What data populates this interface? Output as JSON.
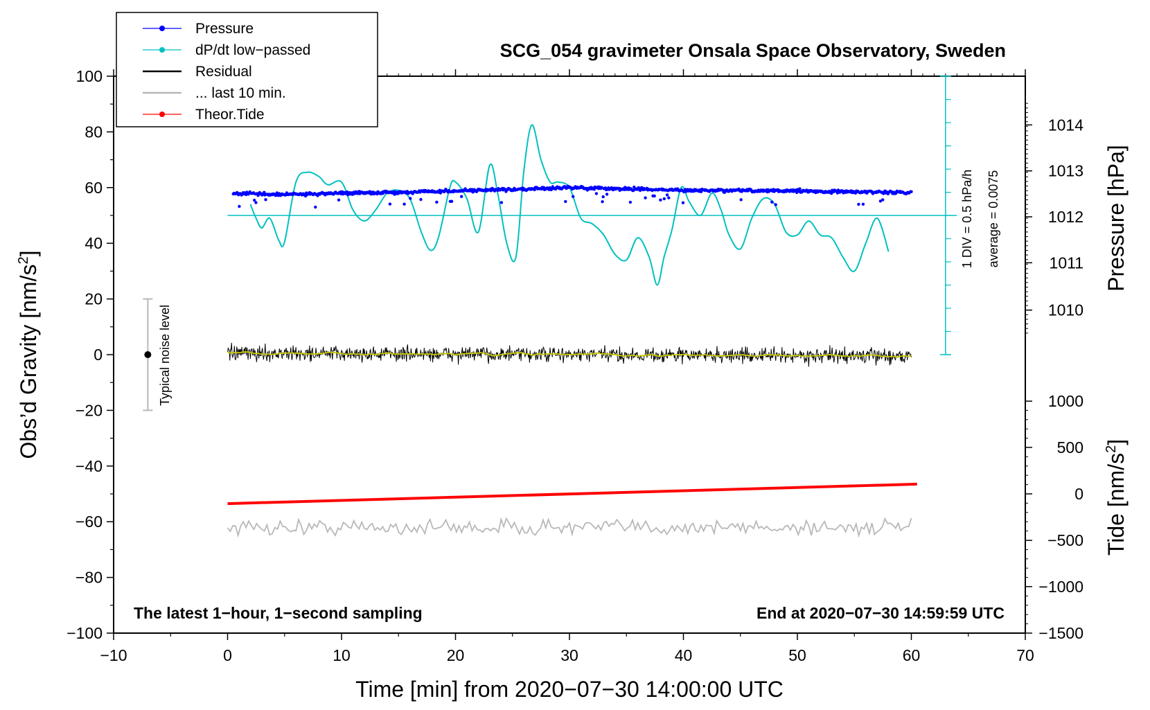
{
  "chart_data": {
    "type": "line",
    "title": "SCG_054 gravimeter Onsala Space Observatory, Sweden",
    "xlabel": "Time [min] from 2020−07−30 14:00:00 UTC",
    "ylabel": "Obs’d Gravity [nm/s",
    "ylabel_sup": "2",
    "ylabel_end": "]",
    "xlim": [
      -10,
      70
    ],
    "ylim": [
      -100,
      100
    ],
    "xticks": [
      "−10",
      "0",
      "10",
      "20",
      "30",
      "40",
      "50",
      "60",
      "70"
    ],
    "yticks": [
      "100",
      "80",
      "60",
      "40",
      "20",
      "0",
      "−20",
      "−40",
      "−60",
      "−80",
      "−100"
    ],
    "right_axes": {
      "pressure": {
        "label": "Pressure [hPa]",
        "ticks": [
          "1014",
          "1013",
          "1012",
          "1011",
          "1010"
        ],
        "tick_values": [
          1014,
          1013,
          1012,
          1011,
          1010
        ],
        "gravity_equivalent": [
          82.5,
          66,
          49.5,
          33,
          16
        ]
      },
      "tide": {
        "label": "Tide [nm/s",
        "label_sup": "2",
        "label_end": "]",
        "ticks": [
          "1000",
          "500",
          "0",
          "−500",
          "−1000",
          "−1500"
        ],
        "tick_values": [
          1000,
          500,
          0,
          -500,
          -1000,
          -1500
        ],
        "gravity_equivalent": [
          -16.7,
          -33.3,
          -50,
          -66.7,
          -83.3,
          -100
        ]
      }
    },
    "dpdt_scale": {
      "div_label": "1 DIV = 0.5 hPa/h",
      "average_label": "average = 0.0075",
      "baseline_gravity": 50
    },
    "noise_bar": {
      "label": "Typical noise level",
      "x": -7,
      "center": 0,
      "range": [
        -20,
        20
      ]
    },
    "legend": [
      {
        "label": "Pressure",
        "color": "#0000ff",
        "marker": "dot"
      },
      {
        "label": "dP/dt low−passed",
        "color": "#00c0c0",
        "marker": "dot"
      },
      {
        "label": "Residual",
        "color": "#000000",
        "marker": "line"
      },
      {
        "label": "... last 10 min.",
        "color": "#b8b8b8",
        "marker": "line"
      },
      {
        "label": "Theor.Tide",
        "color": "#ff0000",
        "marker": "dot"
      }
    ],
    "series": [
      {
        "name": "Pressure",
        "x": [
          0.5,
          5,
          10,
          15,
          20,
          25,
          30,
          35,
          40,
          45,
          50,
          55,
          60
        ],
        "values": [
          58,
          57.5,
          58,
          58.3,
          58.8,
          59.3,
          60,
          59.5,
          59,
          58.9,
          58.8,
          58.5,
          58.2
        ]
      },
      {
        "name": "dP/dt low−passed",
        "x": [
          2,
          2.5,
          3,
          3.7,
          4.5,
          5,
          6,
          7,
          8,
          8.8,
          10,
          11,
          12,
          13,
          14,
          15,
          16,
          17,
          17.8,
          18.5,
          19.5,
          20,
          21,
          22,
          23,
          23.7,
          24.5,
          25.3,
          26,
          26.7,
          27.5,
          28.3,
          29,
          30,
          31,
          32,
          33,
          34,
          35,
          36,
          37,
          37.7,
          38.3,
          39,
          39.8,
          40.5,
          41.5,
          42.5,
          43.3,
          44,
          45,
          46,
          47,
          48,
          49,
          50,
          51,
          52,
          53,
          54,
          55,
          56,
          57,
          58
        ],
        "values": [
          54,
          49,
          45.5,
          49,
          41,
          40.5,
          62,
          65.5,
          64,
          61,
          62,
          52,
          48,
          52,
          58,
          59,
          56,
          44,
          37.5,
          42,
          60,
          62,
          56,
          44,
          68,
          58,
          40,
          35,
          66,
          82.5,
          70,
          62,
          62,
          60,
          49,
          47,
          43,
          36,
          34,
          42,
          35,
          25,
          35,
          45,
          60,
          55,
          50,
          58,
          52,
          43,
          38,
          49,
          56,
          54,
          44,
          43,
          48,
          43,
          42,
          35,
          30,
          40,
          49,
          37
        ]
      },
      {
        "name": "Residual",
        "x": [
          0,
          60
        ],
        "values": [
          0.5,
          -0.5
        ],
        "amplitude": 3.5
      },
      {
        "name": "... last 10 min.",
        "x": [
          0,
          60
        ],
        "values": [
          -62,
          -62
        ],
        "amplitude": 3.5
      },
      {
        "name": "Theor.Tide",
        "x": [
          0,
          60.5
        ],
        "values": [
          -53.5,
          -46.5
        ]
      }
    ],
    "footer_left": "The latest 1−hour, 1−second sampling",
    "footer_right": "End at 2020−07−30 14:59:59 UTC"
  }
}
